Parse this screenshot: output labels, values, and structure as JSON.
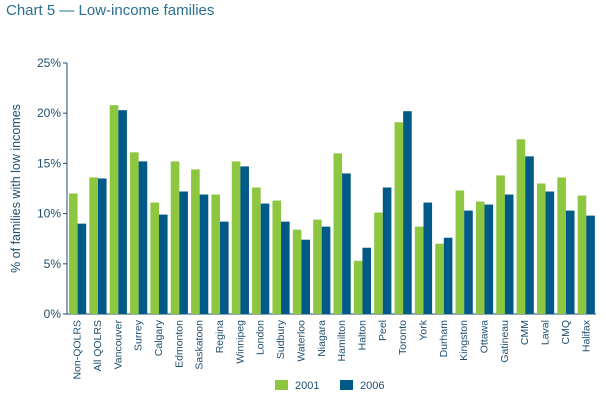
{
  "chart_data": {
    "type": "bar",
    "title": "Chart 5 — Low-income families",
    "ylabel": "% of families with low incomes",
    "ylim": [
      0,
      25
    ],
    "yticks": [
      0,
      5,
      10,
      15,
      20,
      25
    ],
    "ytick_labels": [
      "0%",
      "5%",
      "10%",
      "15%",
      "20%",
      "25%"
    ],
    "grid": false,
    "legend_position": "bottom-center",
    "categories": [
      "Non-QOLRS",
      "All QOLRS",
      "Vancouver",
      "Surrey",
      "Calgary",
      "Edmonton",
      "Saskatoon",
      "Regina",
      "Winnipeg",
      "London",
      "Sudbury",
      "Waterloo",
      "Niagara",
      "Hamilton",
      "Halton",
      "Peel",
      "Toronto",
      "York",
      "Durham",
      "Kingston",
      "Ottawa",
      "Gatineau",
      "CMM",
      "Laval",
      "CMQ",
      "Halifax"
    ],
    "series": [
      {
        "name": "2001",
        "color": "#8dc63f",
        "values": [
          12.0,
          13.6,
          20.8,
          16.1,
          11.1,
          15.2,
          14.4,
          11.9,
          15.2,
          12.6,
          11.3,
          8.4,
          9.4,
          16.0,
          5.3,
          10.1,
          19.1,
          8.7,
          7.0,
          12.3,
          11.2,
          13.8,
          17.4,
          13.0,
          13.6,
          11.8
        ]
      },
      {
        "name": "2006",
        "color": "#005a87",
        "values": [
          9.0,
          13.5,
          20.3,
          15.2,
          9.9,
          12.2,
          11.9,
          9.2,
          14.7,
          11.0,
          9.2,
          7.4,
          8.7,
          14.0,
          6.6,
          12.6,
          20.2,
          11.1,
          7.6,
          10.3,
          10.9,
          11.9,
          15.7,
          12.2,
          10.3,
          9.8
        ]
      }
    ]
  }
}
